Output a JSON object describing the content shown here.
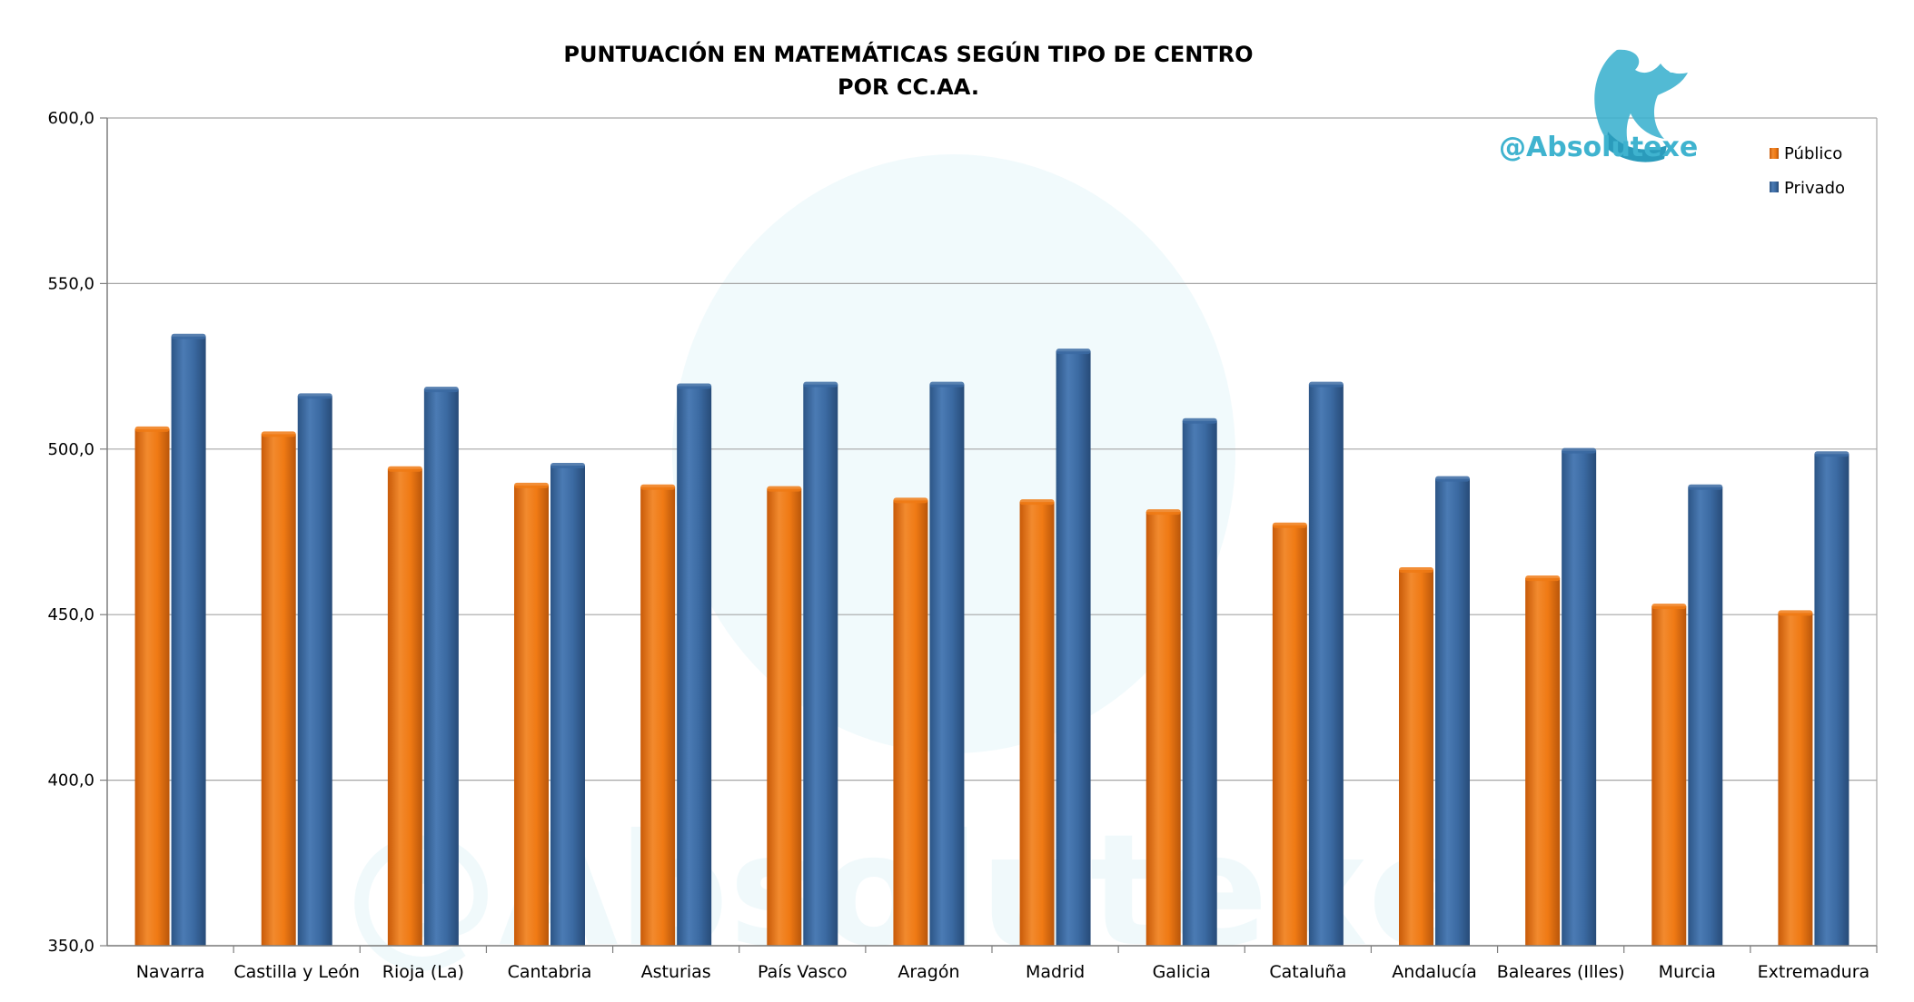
{
  "colors": {
    "publico": "#f07a14",
    "privado": "#3b6aa2",
    "gridline": "#a6a6a6",
    "axis": "#7f7f7f",
    "brand": "#3fb3cf"
  },
  "watermark": {
    "handle": "@Absolutexe",
    "icon": "griffin-logo-icon"
  },
  "chart_data": {
    "type": "bar",
    "title_lines": [
      "PUNTUACIÓN EN MATEMÁTICAS SEGÚN TIPO DE CENTRO",
      "POR CC.AA."
    ],
    "xlabel": "",
    "ylabel": "",
    "ylim": [
      350,
      600
    ],
    "yticks": [
      350,
      400,
      450,
      500,
      550,
      600
    ],
    "ytick_labels": [
      "350,0",
      "400,0",
      "450,0",
      "500,0",
      "550,0",
      "600,0"
    ],
    "grid": true,
    "legend_position": "top-right",
    "categories": [
      "Navarra",
      "Castilla y León",
      "Rioja (La)",
      "Cantabria",
      "Asturias",
      "País Vasco",
      "Aragón",
      "Madrid",
      "Galicia",
      "Cataluña",
      "Andalucía",
      "Baleares (Illes)",
      "Murcia",
      "Extremadura"
    ],
    "series": [
      {
        "name": "Público",
        "values": [
          506,
          504.5,
          494,
          489,
          488.5,
          488,
          484.5,
          484,
          481,
          477,
          463.5,
          461,
          452.5,
          450.5
        ]
      },
      {
        "name": "Privado",
        "values": [
          534,
          516,
          518,
          495,
          519,
          519.5,
          519.5,
          529.5,
          508.5,
          519.5,
          491,
          499.5,
          488.5,
          498.5
        ]
      }
    ]
  }
}
